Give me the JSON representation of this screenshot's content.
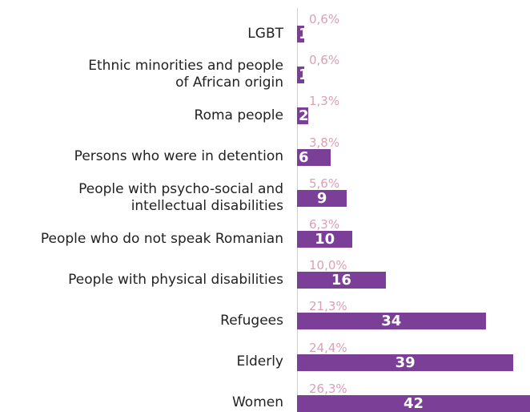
{
  "colors": {
    "bar": "#7b3f98",
    "percent_text": "#dd9fb4",
    "label_text": "#222222",
    "axis_line": "#e9c9a8"
  },
  "chart_data": {
    "type": "bar",
    "orientation": "horizontal",
    "categories": [
      "LGBT",
      "Ethnic minorities and people of African origin",
      "Roma people",
      "Persons who were in detention",
      "People with psycho-social and intellectual disabilities",
      "People who do not speak Romanian",
      "People with physical disabilities",
      "Refugees",
      "Elderly",
      "Women"
    ],
    "category_lines": [
      [
        "LGBT"
      ],
      [
        "Ethnic minorities and people",
        "of African origin"
      ],
      [
        "Roma people"
      ],
      [
        "Persons who were in detention"
      ],
      [
        "People with psycho-social and",
        "intellectual disabilities"
      ],
      [
        "People who do not speak Romanian"
      ],
      [
        "People with physical disabilities"
      ],
      [
        "Refugees"
      ],
      [
        "Elderly"
      ],
      [
        "Women"
      ]
    ],
    "values": [
      1,
      1,
      2,
      6,
      9,
      10,
      16,
      34,
      39,
      42
    ],
    "percent_labels": [
      "0,6%",
      "0,6%",
      "1,3%",
      "3,8%",
      "5,6%",
      "6,3%",
      "10,0%",
      "21,3%",
      "24,4%",
      "26,3%"
    ],
    "xlim": [
      0,
      42
    ],
    "title": "",
    "xlabel": "",
    "ylabel": "",
    "grid": false,
    "legend": "none"
  }
}
